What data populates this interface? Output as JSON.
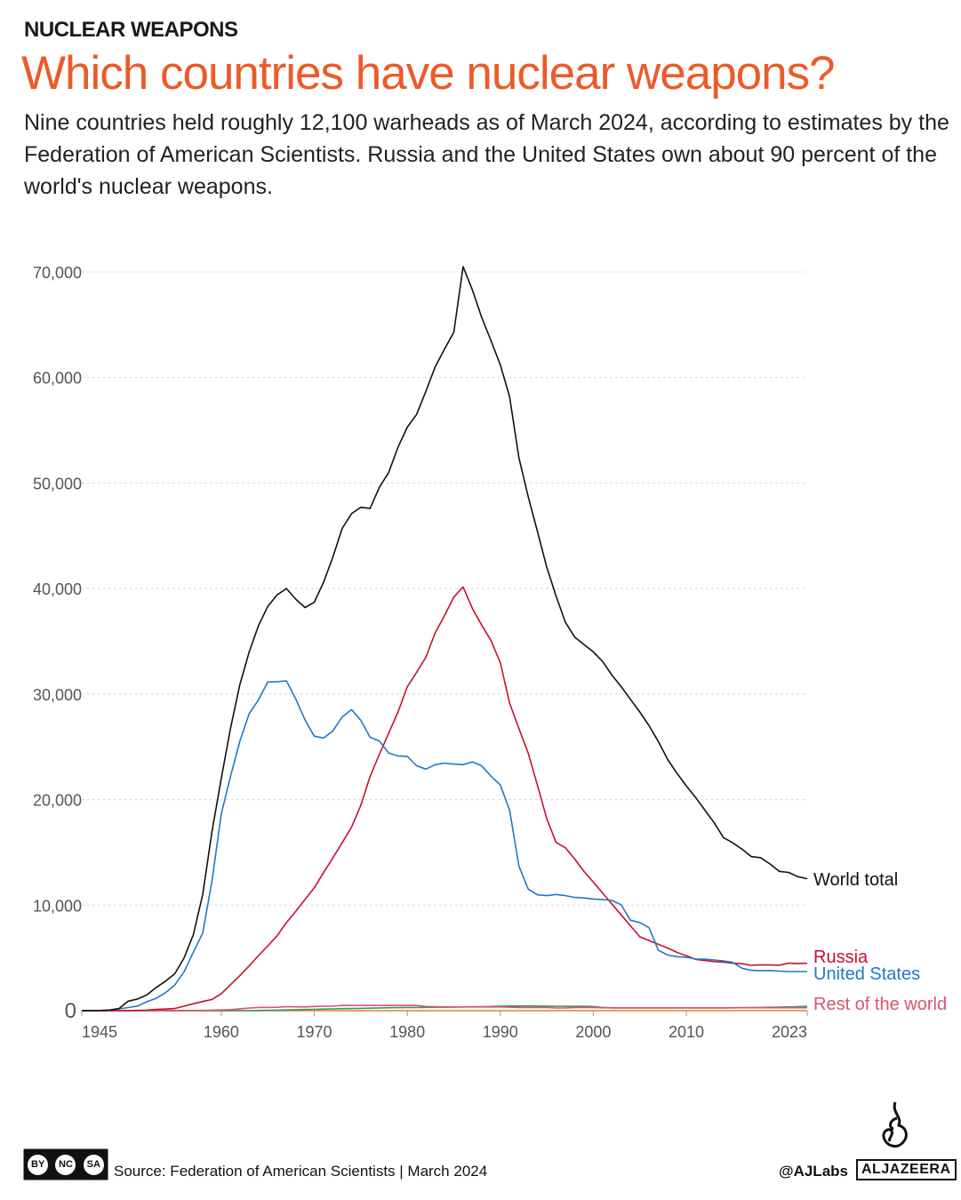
{
  "header": {
    "kicker": "NUCLEAR WEAPONS",
    "title": "Which countries have nuclear weapons?",
    "subtitle": "Nine countries held roughly 12,100 warheads as of March 2024, according to estimates by the Federation of American Scientists. Russia and the United States own about 90 percent of the world's nuclear weapons."
  },
  "chart_data": {
    "type": "line",
    "title": "",
    "xlabel": "",
    "ylabel": "",
    "xlim": [
      1945,
      2023
    ],
    "ylim": [
      0,
      70000
    ],
    "grid": true,
    "legend_placement": "right (direct labels at line ends)",
    "x_ticks": [
      1945,
      1960,
      1970,
      1980,
      1990,
      2000,
      2010,
      2023
    ],
    "x_tick_labels": [
      "1945",
      "1960",
      "1970",
      "1980",
      "1990",
      "2000",
      "2010",
      "2023"
    ],
    "y_ticks": [
      0,
      10000,
      20000,
      30000,
      40000,
      50000,
      60000,
      70000
    ],
    "y_tick_labels": [
      "0",
      "10,000",
      "20,000",
      "30,000",
      "40,000",
      "50,000",
      "60,000",
      "70,000"
    ],
    "x_start": 1945,
    "series": [
      {
        "name": "World total",
        "color": "#111111",
        "values": [
          0,
          10,
          20,
          60,
          200,
          900,
          1100,
          1500,
          2200,
          2800,
          3500,
          5000,
          7200,
          11000,
          17000,
          22000,
          26800,
          30900,
          34000,
          36500,
          38300,
          39400,
          40000,
          39000,
          38200,
          38700,
          40600,
          43000,
          45700,
          47100,
          47700,
          47600,
          49600,
          51000,
          53400,
          55300,
          56500,
          58700,
          61000,
          62700,
          64300,
          70500,
          68300,
          65700,
          63500,
          61200,
          58200,
          52400,
          48700,
          45400,
          42000,
          39300,
          36800,
          35400,
          34700,
          34000,
          33100,
          31800,
          30700,
          29500,
          28300,
          27000,
          25500,
          23800,
          22500,
          21300,
          20200,
          19000,
          17800,
          16400,
          15900,
          15300,
          14600,
          14500,
          13900,
          13200,
          13100,
          12700,
          12500
        ]
      },
      {
        "name": "Russia",
        "color": "#c8102e",
        "values": [
          0,
          0,
          0,
          0,
          1,
          5,
          25,
          50,
          120,
          150,
          200,
          426,
          660,
          869,
          1060,
          1605,
          2471,
          3322,
          4238,
          5221,
          6129,
          7089,
          8339,
          9399,
          10538,
          11643,
          13092,
          14478,
          15915,
          17385,
          19443,
          22200,
          24300,
          26300,
          28300,
          30700,
          32049,
          33500,
          35804,
          37431,
          39197,
          40159,
          38107,
          36538,
          35078,
          32980,
          29154,
          26734,
          24403,
          21339,
          18179,
          15942,
          15442,
          14368,
          13188,
          12188,
          11152,
          10114,
          9076,
          8038,
          7000,
          6643,
          6286,
          5929,
          5527,
          5215,
          4858,
          4750,
          4650,
          4600,
          4500,
          4450,
          4300,
          4350,
          4330,
          4310,
          4495,
          4477,
          4489
        ]
      },
      {
        "name": "United States",
        "color": "#1f78c8",
        "values": [
          2,
          9,
          13,
          50,
          170,
          299,
          438,
          841,
          1169,
          1703,
          2422,
          3692,
          5543,
          7345,
          12298,
          18638,
          22229,
          25540,
          28133,
          29463,
          31139,
          31175,
          31255,
          29561,
          27552,
          26008,
          25830,
          26516,
          27835,
          28537,
          27519,
          25914,
          25542,
          24418,
          24138,
          24104,
          23208,
          22886,
          23305,
          23459,
          23368,
          23317,
          23575,
          23205,
          22217,
          21392,
          19008,
          13708,
          11511,
          10979,
          10904,
          11011,
          10903,
          10732,
          10685,
          10577,
          10526,
          10457,
          10027,
          8570,
          8360,
          7853,
          5709,
          5273,
          5113,
          5066,
          4897,
          4881,
          4804,
          4717,
          4571,
          4018,
          3822,
          3785,
          3805,
          3750,
          3708,
          3708,
          3708
        ]
      },
      {
        "name": "Rest of the world",
        "color": "#d9536e",
        "values": [
          0,
          0,
          0,
          0,
          0,
          0,
          0,
          0,
          1,
          5,
          10,
          15,
          20,
          25,
          40,
          70,
          100,
          180,
          250,
          300,
          310,
          320,
          380,
          360,
          350,
          400,
          420,
          420,
          500,
          500,
          500,
          500,
          500,
          500,
          500,
          500,
          500,
          400,
          380,
          350,
          350,
          350,
          350,
          350,
          350,
          350,
          330,
          300,
          300,
          300,
          300,
          250,
          250,
          300,
          300,
          300,
          280,
          280,
          280,
          280,
          280,
          280,
          280,
          280,
          280,
          280,
          280,
          280,
          280,
          280,
          280,
          280,
          280,
          280,
          280,
          280,
          280,
          280,
          280
        ]
      },
      {
        "color": "#2e9a6a",
        "values": [
          0,
          0,
          0,
          0,
          0,
          0,
          0,
          0,
          0,
          0,
          0,
          0,
          0,
          0,
          0,
          0,
          0,
          0,
          0,
          10,
          30,
          50,
          70,
          90,
          110,
          130,
          150,
          170,
          190,
          200,
          220,
          240,
          260,
          280,
          290,
          300,
          300,
          310,
          320,
          330,
          340,
          350,
          360,
          380,
          400,
          430,
          450,
          450,
          450,
          440,
          430,
          420,
          410,
          410,
          410,
          400,
          300,
          260,
          250,
          250,
          250,
          250,
          250,
          250,
          250,
          250,
          250,
          250,
          250,
          260,
          270,
          280,
          290,
          300,
          320,
          340,
          350,
          380,
          410
        ]
      },
      {
        "color": "#e8821e",
        "values": [
          0,
          0,
          0,
          0,
          0,
          0,
          0,
          0,
          0,
          0,
          0,
          0,
          0,
          0,
          0,
          0,
          0,
          0,
          0,
          0,
          0,
          0,
          0,
          0,
          0,
          0,
          0,
          0,
          0,
          0,
          0,
          0,
          0,
          0,
          0,
          0,
          0,
          0,
          0,
          0,
          0,
          0,
          0,
          0,
          0,
          0,
          0,
          0,
          0,
          0,
          0,
          0,
          0,
          0,
          0,
          0,
          0,
          0,
          0,
          0,
          0,
          0,
          0,
          0,
          0,
          0,
          0,
          0,
          0,
          0,
          0,
          0,
          0,
          0,
          0,
          0,
          0,
          0,
          0
        ]
      }
    ]
  },
  "footer": {
    "license_labels": [
      "BY",
      "NC",
      "SA"
    ],
    "source": "Source: Federation of American Scientists  |  March 2024",
    "handle": "@AJLabs",
    "logo": "ALJAZEERA"
  }
}
